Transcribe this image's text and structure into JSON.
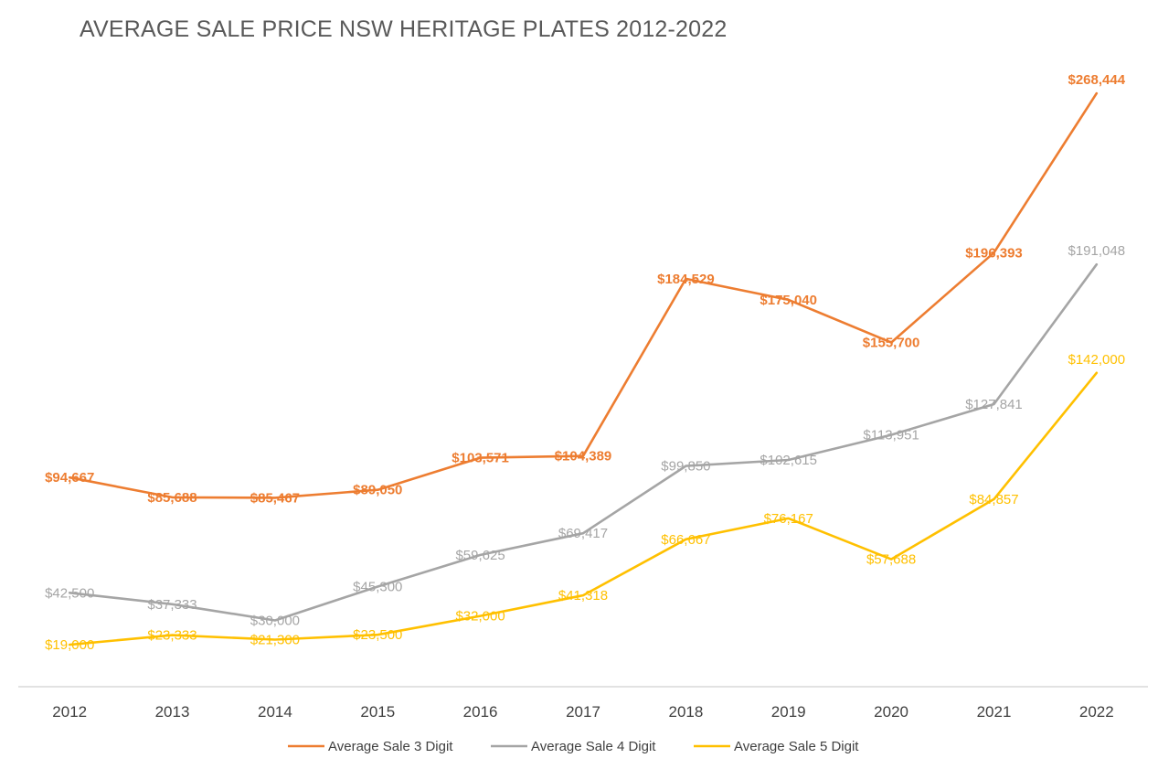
{
  "chart_data": {
    "type": "line",
    "title": "AVERAGE SALE PRICE NSW HERITAGE PLATES 2012-2022",
    "xlabel": "",
    "ylabel": "",
    "x": [
      "2012",
      "2013",
      "2014",
      "2015",
      "2016",
      "2017",
      "2018",
      "2019",
      "2020",
      "2021",
      "2022"
    ],
    "ylim": [
      0,
      290000
    ],
    "grid": false,
    "legend": "bottom",
    "series": [
      {
        "name": "Average Sale 3 Digit",
        "color": "#ED7D31",
        "bold": true,
        "values": [
          94667,
          85688,
          85467,
          89050,
          103571,
          104389,
          184529,
          175040,
          155700,
          196393,
          268444
        ],
        "labels": [
          "$94,667",
          "$85,688",
          "$85,467",
          "$89,050",
          "$103,571",
          "$104,389",
          "$184,529",
          "$175,040",
          "$155,700",
          "$196,393",
          "$268,444"
        ]
      },
      {
        "name": "Average Sale 4 Digit",
        "color": "#A5A5A5",
        "bold": false,
        "values": [
          42500,
          37333,
          30000,
          45300,
          59625,
          69417,
          99850,
          102615,
          113951,
          127841,
          191048
        ],
        "labels": [
          "$42,500",
          "$37,333",
          "$30,000",
          "$45,300",
          "$59,625",
          "$69,417",
          "$99,850",
          "$102,615",
          "$113,951",
          "$127,841",
          "$191,048"
        ]
      },
      {
        "name": "Average Sale 5 Digit",
        "color": "#FFC000",
        "bold": false,
        "values": [
          19000,
          23333,
          21300,
          23500,
          32000,
          41318,
          66667,
          76167,
          57688,
          84857,
          142000
        ],
        "labels": [
          "$19,000",
          "$23,333",
          "$21,300",
          "$23,500",
          "$32,000",
          "$41,318",
          "$66,667",
          "$76,167",
          "$57,688",
          "$84,857",
          "$142,000"
        ]
      }
    ]
  }
}
